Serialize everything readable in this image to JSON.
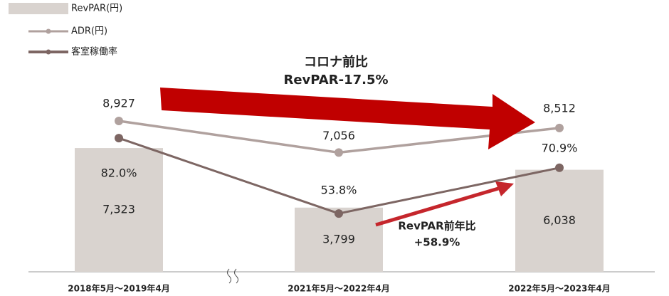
{
  "chart_data": {
    "type": "bar",
    "categories": [
      "2018年5月～2019年4月",
      "2021年5月～2022年4月",
      "2022年5月～2023年4月"
    ],
    "series": [
      {
        "name": "RevPAR(円)",
        "type": "bar",
        "color": "#d9d3cf",
        "values": [
          7323,
          3799,
          6038
        ],
        "value_labels": [
          "7,323",
          "3,799",
          "6,038"
        ]
      },
      {
        "name": "ADR(円)",
        "type": "line",
        "color": "#b0a19e",
        "values": [
          8927,
          7056,
          8512
        ],
        "value_labels": [
          "8,927",
          "7,056",
          "8,512"
        ]
      },
      {
        "name": "客室稼働率",
        "type": "line",
        "axis": "y2",
        "color": "#7d6663",
        "values": [
          82.0,
          53.8,
          70.9
        ],
        "value_labels": [
          "82.0%",
          "53.8%",
          "70.9%"
        ]
      }
    ],
    "ylim": [
      0,
      14400
    ],
    "y2lim": [
      32,
      123
    ],
    "annotations": [
      "コロナ前比",
      "RevPAR-17.5%",
      "RevPAR前年比",
      "+58.9%"
    ],
    "annotation_colors": [
      "#c00000",
      "#c5262c"
    ]
  }
}
